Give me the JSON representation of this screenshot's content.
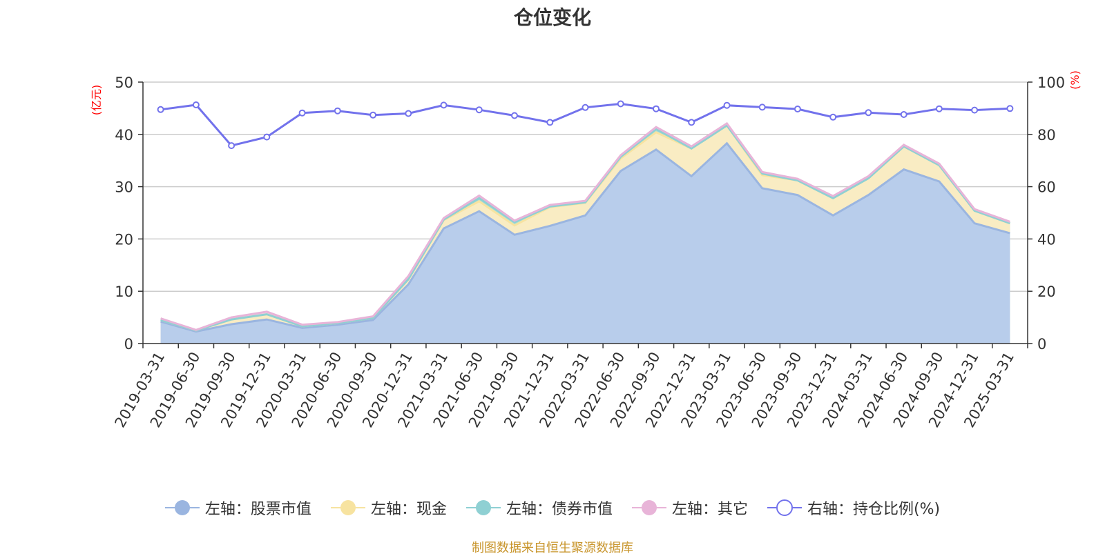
{
  "chart_data": {
    "type": "area",
    "title": "仓位变化",
    "categories": [
      "2019-03-31",
      "2019-06-30",
      "2019-09-30",
      "2019-12-31",
      "2020-03-31",
      "2020-06-30",
      "2020-09-30",
      "2020-12-31",
      "2021-03-31",
      "2021-06-30",
      "2021-09-30",
      "2021-12-31",
      "2022-03-31",
      "2022-06-30",
      "2022-09-30",
      "2022-12-31",
      "2023-03-31",
      "2023-06-30",
      "2023-09-30",
      "2023-12-31",
      "2024-03-31",
      "2024-06-30",
      "2024-09-30",
      "2024-12-31",
      "2025-03-31"
    ],
    "left_axis": {
      "label": "(亿元)",
      "ylim": [
        0,
        50
      ],
      "ticks": [
        "0",
        "10",
        "20",
        "30",
        "40",
        "50"
      ]
    },
    "right_axis": {
      "label": "(%)",
      "ylim": [
        0,
        100
      ],
      "ticks": [
        "0",
        "20",
        "40",
        "60",
        "80",
        "100"
      ]
    },
    "grid": true,
    "legend_position": "bottom",
    "series": [
      {
        "name": "左轴：股票市值",
        "axis": "left",
        "type": "area",
        "color": "#9ab5e0",
        "fill": "#b8cdeb",
        "values": [
          4.2,
          2.3,
          3.7,
          4.6,
          3.0,
          3.6,
          4.5,
          11.3,
          22.0,
          25.3,
          20.8,
          22.5,
          24.5,
          33.0,
          37.1,
          32.0,
          38.3,
          29.7,
          28.4,
          24.5,
          28.4,
          33.3,
          31.0,
          23.0,
          21.1
        ]
      },
      {
        "name": "左轴：现金",
        "axis": "left",
        "type": "area",
        "color": "#f7e3a0",
        "fill": "#f9ecc3",
        "values": [
          0.3,
          0.2,
          0.9,
          1.0,
          0.3,
          0.3,
          0.4,
          1.0,
          1.6,
          1.9,
          1.8,
          3.6,
          2.4,
          2.4,
          3.3,
          5.3,
          3.4,
          2.5,
          2.8,
          3.3,
          3.2,
          4.4,
          3.1,
          2.4,
          1.9
        ]
      },
      {
        "name": "左轴：债券市值",
        "axis": "left",
        "type": "area",
        "color": "#8fd0d3",
        "fill": "#a8dcd9",
        "values": [
          0.0,
          0.0,
          0.0,
          0.0,
          0.0,
          0.0,
          0.0,
          0.0,
          0.1,
          0.6,
          0.6,
          0.1,
          0.1,
          0.3,
          0.6,
          0.0,
          0.0,
          0.3,
          0.0,
          0.0,
          0.0,
          0.0,
          0.0,
          0.0,
          0.0
        ]
      },
      {
        "name": "左轴：其它",
        "axis": "left",
        "type": "area",
        "color": "#e8b4d8",
        "fill": "#f2cde4",
        "values": [
          0.3,
          0.1,
          0.4,
          0.5,
          0.3,
          0.2,
          0.3,
          0.6,
          0.3,
          0.5,
          0.3,
          0.3,
          0.3,
          0.3,
          0.4,
          0.4,
          0.4,
          0.3,
          0.3,
          0.4,
          0.4,
          0.3,
          0.3,
          0.3,
          0.3
        ]
      },
      {
        "name": "右轴：持仓比例(%)",
        "axis": "right",
        "type": "line",
        "color": "#7272ec",
        "values": [
          89.5,
          91.3,
          75.7,
          79.0,
          88.2,
          89.0,
          87.4,
          88.0,
          91.2,
          89.4,
          87.2,
          84.6,
          90.3,
          91.7,
          89.8,
          84.6,
          91.1,
          90.4,
          89.7,
          86.6,
          88.3,
          87.6,
          89.8,
          89.3,
          89.9
        ]
      }
    ]
  },
  "source_note": "制图数据来自恒生聚源数据库"
}
